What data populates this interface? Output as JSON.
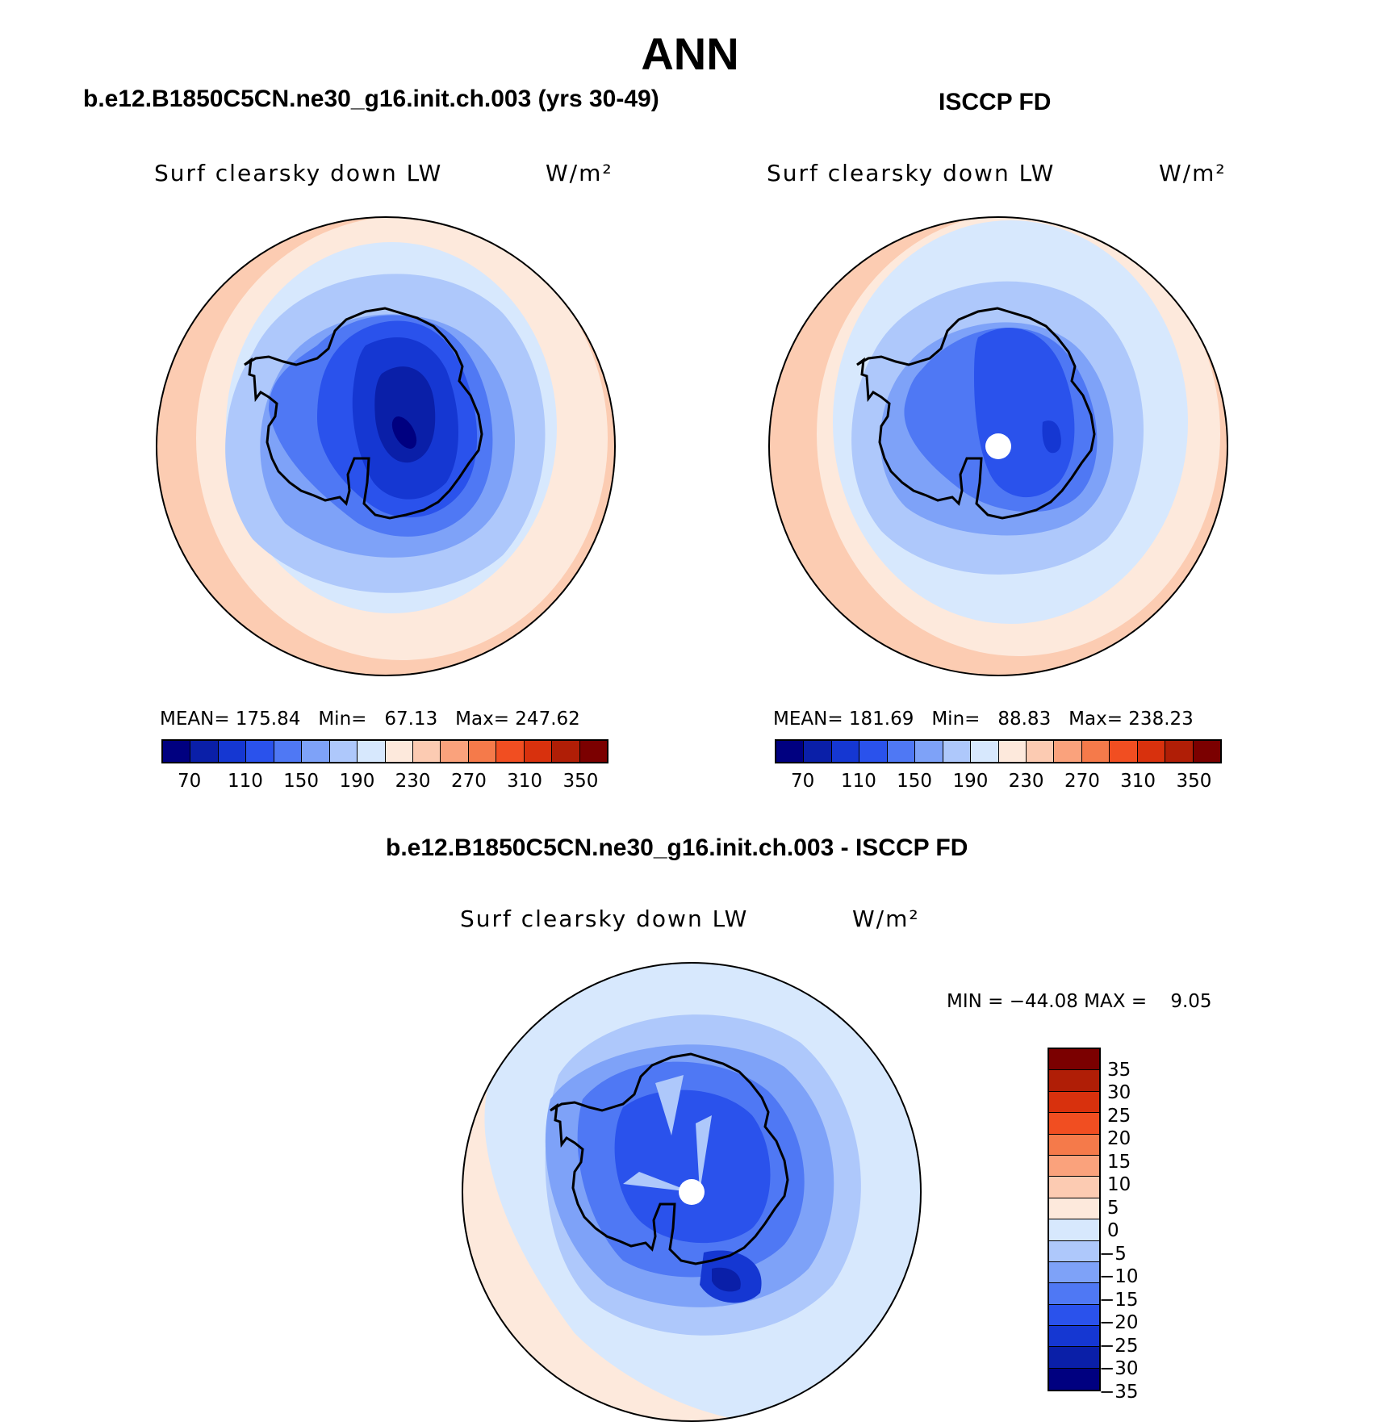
{
  "title": "ANN",
  "panels": [
    {
      "case_title": "b.e12.B1850C5CN.ne30_g16.init.ch.003 (yrs 30-49)",
      "variable": "Surf clearsky down LW",
      "units": "W/m²",
      "stats": {
        "mean_label": "MEAN=",
        "mean": "175.84",
        "min_label": "Min=",
        "min": "67.13",
        "max_label": "Max=",
        "max": "247.62"
      }
    },
    {
      "case_title": "ISCCP FD",
      "variable": "Surf clearsky down LW",
      "units": "W/m²",
      "stats": {
        "mean_label": "MEAN=",
        "mean": "181.69",
        "min_label": "Min=",
        "min": "88.83",
        "max_label": "Max=",
        "max": "238.23"
      }
    },
    {
      "case_title": "b.e12.B1850C5CN.ne30_g16.init.ch.003 - ISCCP FD",
      "variable": "Surf clearsky down LW",
      "units": "W/m²",
      "stats": {
        "min_label": "MIN =",
        "min": "−44.08",
        "max_label": "MAX =",
        "max": "9.05"
      }
    }
  ],
  "colorbar_abs": {
    "colors": [
      "#000080",
      "#0a1fa8",
      "#1537d2",
      "#2a52ec",
      "#4f78f4",
      "#7ea2f8",
      "#aec8fb",
      "#d7e8fd",
      "#fde9dc",
      "#fccbb2",
      "#faa27c",
      "#f57a4a",
      "#f14e21",
      "#d8310d",
      "#b01e06",
      "#7b0000"
    ],
    "tick_labels": [
      "70",
      "110",
      "150",
      "190",
      "230",
      "270",
      "310",
      "350"
    ]
  },
  "colorbar_diff": {
    "colors": [
      "#7b0000",
      "#b01e06",
      "#d8310d",
      "#f14e21",
      "#f57a4a",
      "#faa27c",
      "#fccbb2",
      "#fde9dc",
      "#d7e8fd",
      "#aec8fb",
      "#7ea2f8",
      "#4f78f4",
      "#2a52ec",
      "#1537d2",
      "#0a1fa8",
      "#000080"
    ],
    "tick_labels": [
      "35",
      "30",
      "25",
      "20",
      "15",
      "10",
      "5",
      "0",
      "−5",
      "−10",
      "−15",
      "−20",
      "−25",
      "−30",
      "−35"
    ]
  },
  "map_colors": {
    "ocean_warm": "#fcccb2",
    "ocean_mid": "#fde9dc",
    "ocean_cool": "#d7e8fd",
    "coast_belt": "#aec8fb",
    "ice_edge": "#7ea2f8",
    "ice_1": "#4f78f4",
    "ice_2": "#2a52ec",
    "ice_3": "#1537d2",
    "ice_4": "#0a1fa8",
    "ice_min": "#000080"
  }
}
